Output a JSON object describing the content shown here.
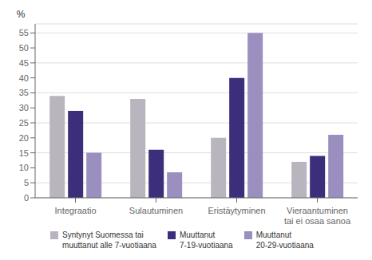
{
  "chart_data": {
    "type": "bar",
    "ylabel": "%",
    "categories": [
      "Integraatio",
      "Sulautuminen",
      "Eristäytyminen",
      "Vieraantuminen\ntai ei osaa sanoa"
    ],
    "series": [
      {
        "name": "Syntynyt Suomessa tai\nmuuttanut alle 7-vuotiaana",
        "color": "#b8b5bf",
        "values": [
          34,
          33,
          20,
          12
        ]
      },
      {
        "name": "Muuttanut\n7-19-vuotiaana",
        "color": "#3d2e7c",
        "values": [
          29,
          16,
          40,
          14
        ]
      },
      {
        "name": "Muuttanut\n20-29-vuotiaana",
        "color": "#9b8fc0",
        "values": [
          15,
          8.5,
          55,
          21
        ]
      }
    ],
    "ylim": [
      0,
      58
    ],
    "yticks": [
      0,
      5,
      10,
      15,
      20,
      25,
      30,
      35,
      40,
      45,
      50,
      55
    ],
    "grid": true,
    "legend": "bottom"
  }
}
